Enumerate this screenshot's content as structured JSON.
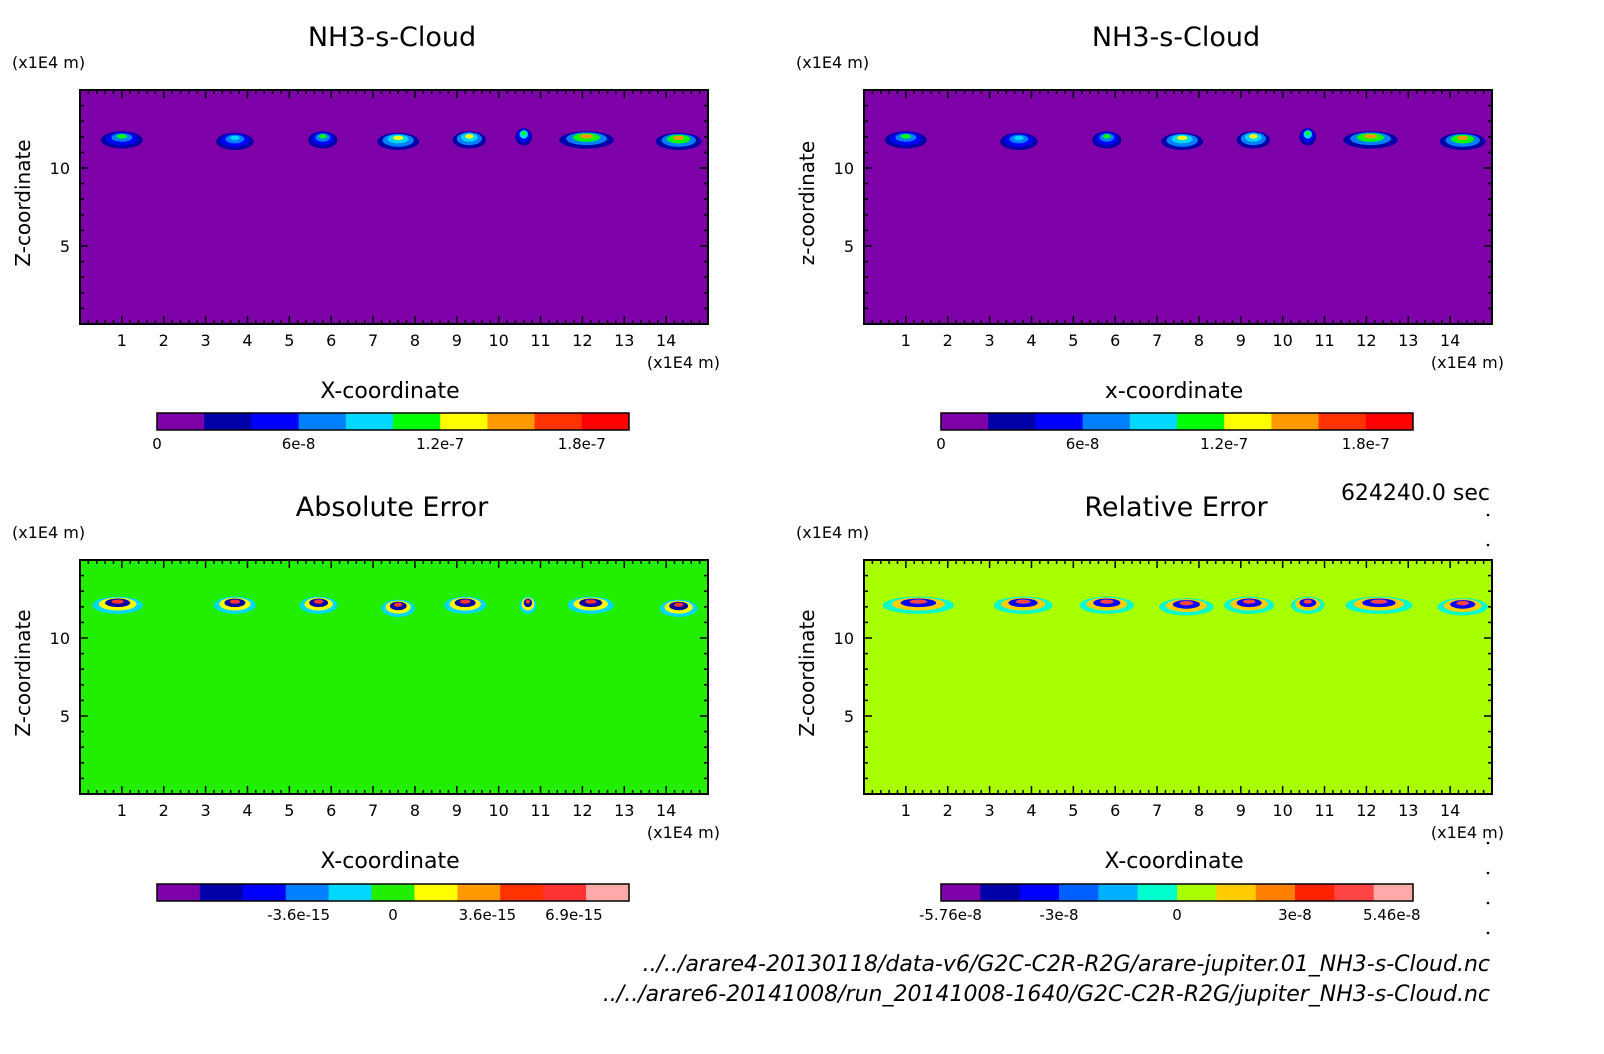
{
  "timestamp": "624240.0 sec",
  "footer": {
    "file1": "../../arare4-20130118/data-v6/G2C-C2R-R2G/arare-jupiter.01_NH3-s-Cloud.nc",
    "file2": "../../arare6-20141008/run_20141008-1640/G2C-C2R-R2G/jupiter_NH3-s-Cloud.nc"
  },
  "chart_data": [
    {
      "type": "heatmap",
      "title": "NH3-s-Cloud",
      "xlabel": "X-coordinate",
      "ylabel": "Z-coordinate",
      "x_unit": "(x1E4 m)",
      "y_unit": "(x1E4 m)",
      "xlim": [
        0,
        15
      ],
      "ylim": [
        0,
        15
      ],
      "xticks": [
        1,
        2,
        3,
        4,
        5,
        6,
        7,
        8,
        9,
        10,
        11,
        12,
        13,
        14
      ],
      "yticks": [
        5,
        10
      ],
      "background_color": "#7e00a8",
      "colorbar": {
        "colors": [
          "#7e00a8",
          "#0000a8",
          "#0000ff",
          "#0080ff",
          "#00d8ff",
          "#00ff00",
          "#ffff00",
          "#ff9900",
          "#ff3300",
          "#ff0000"
        ],
        "tick_labels": [
          "0",
          "6e-8",
          "1.2e-7",
          "1.8e-7"
        ],
        "tick_values": [
          0,
          6e-08,
          1.2e-07,
          1.8e-07
        ],
        "range": [
          0,
          2e-07
        ]
      },
      "features": [
        {
          "x": 1.0,
          "z": 11.8,
          "width": 1.0,
          "peak": 0.45
        },
        {
          "x": 3.7,
          "z": 11.7,
          "width": 0.9,
          "peak": 0.4
        },
        {
          "x": 5.8,
          "z": 11.8,
          "width": 0.7,
          "peak": 0.45
        },
        {
          "x": 7.6,
          "z": 11.7,
          "width": 1.0,
          "peak": 0.65
        },
        {
          "x": 9.3,
          "z": 11.8,
          "width": 0.8,
          "peak": 0.65
        },
        {
          "x": 10.6,
          "z": 12.0,
          "width": 0.4,
          "peak": 0.5
        },
        {
          "x": 12.1,
          "z": 11.8,
          "width": 1.3,
          "peak": 0.7
        },
        {
          "x": 14.3,
          "z": 11.7,
          "width": 1.1,
          "peak": 0.75
        }
      ]
    },
    {
      "type": "heatmap",
      "title": "NH3-s-Cloud",
      "xlabel": "x-coordinate",
      "ylabel": "z-coordinate",
      "x_unit": "(x1E4 m)",
      "y_unit": "(x1E4 m)",
      "xlim": [
        0,
        15
      ],
      "ylim": [
        0,
        15
      ],
      "xticks": [
        1,
        2,
        3,
        4,
        5,
        6,
        7,
        8,
        9,
        10,
        11,
        12,
        13,
        14
      ],
      "yticks": [
        5,
        10
      ],
      "background_color": "#7e00a8",
      "colorbar": {
        "colors": [
          "#7e00a8",
          "#0000a8",
          "#0000ff",
          "#0080ff",
          "#00d8ff",
          "#00ff00",
          "#ffff00",
          "#ff9900",
          "#ff3300",
          "#ff0000"
        ],
        "tick_labels": [
          "0",
          "6e-8",
          "1.2e-7",
          "1.8e-7"
        ],
        "tick_values": [
          0,
          6e-08,
          1.2e-07,
          1.8e-07
        ],
        "range": [
          0,
          2e-07
        ]
      },
      "features": [
        {
          "x": 1.0,
          "z": 11.8,
          "width": 1.0,
          "peak": 0.45
        },
        {
          "x": 3.7,
          "z": 11.7,
          "width": 0.9,
          "peak": 0.4
        },
        {
          "x": 5.8,
          "z": 11.8,
          "width": 0.7,
          "peak": 0.45
        },
        {
          "x": 7.6,
          "z": 11.7,
          "width": 1.0,
          "peak": 0.65
        },
        {
          "x": 9.3,
          "z": 11.8,
          "width": 0.8,
          "peak": 0.65
        },
        {
          "x": 10.6,
          "z": 12.0,
          "width": 0.4,
          "peak": 0.5
        },
        {
          "x": 12.1,
          "z": 11.8,
          "width": 1.3,
          "peak": 0.7
        },
        {
          "x": 14.3,
          "z": 11.7,
          "width": 1.1,
          "peak": 0.75
        }
      ]
    },
    {
      "type": "heatmap",
      "title": "Absolute Error",
      "xlabel": "X-coordinate",
      "ylabel": "Z-coordinate",
      "x_unit": "(x1E4 m)",
      "y_unit": "(x1E4 m)",
      "xlim": [
        0,
        15
      ],
      "ylim": [
        0,
        15
      ],
      "xticks": [
        1,
        2,
        3,
        4,
        5,
        6,
        7,
        8,
        9,
        10,
        11,
        12,
        13,
        14
      ],
      "yticks": [
        5,
        10
      ],
      "background_color": "#22ee00",
      "colorbar": {
        "colors": [
          "#7e00a8",
          "#0000a8",
          "#0000ff",
          "#0080ff",
          "#00d8ff",
          "#22ee00",
          "#ffff00",
          "#ff9900",
          "#ff3300",
          "#ff3333",
          "#ffaaaa"
        ],
        "tick_labels": [
          "-3.6e-15",
          "0",
          "3.6e-15",
          "6.9e-15"
        ],
        "tick_values": [
          -3.6e-15,
          0,
          3.6e-15,
          6.9e-15
        ],
        "range": [
          -9e-15,
          9e-15
        ]
      },
      "features": [
        {
          "x": 0.9,
          "z": 12.1,
          "width": 1.2,
          "peak": 0.3
        },
        {
          "x": 3.7,
          "z": 12.1,
          "width": 1.0,
          "peak": 0.3
        },
        {
          "x": 5.7,
          "z": 12.1,
          "width": 0.9,
          "peak": 0.3
        },
        {
          "x": 7.6,
          "z": 11.9,
          "width": 0.8,
          "peak": 0.5
        },
        {
          "x": 9.2,
          "z": 12.1,
          "width": 1.0,
          "peak": 0.3
        },
        {
          "x": 10.7,
          "z": 12.1,
          "width": 0.4,
          "peak": 0.3
        },
        {
          "x": 12.2,
          "z": 12.1,
          "width": 1.1,
          "peak": 0.4
        },
        {
          "x": 14.3,
          "z": 11.9,
          "width": 0.9,
          "peak": 0.5
        }
      ]
    },
    {
      "type": "heatmap",
      "title": "Relative Error",
      "xlabel": "X-coordinate",
      "ylabel": "Z-coordinate",
      "x_unit": "(x1E4 m)",
      "y_unit": "(x1E4 m)",
      "xlim": [
        0,
        15
      ],
      "ylim": [
        0,
        15
      ],
      "xticks": [
        1,
        2,
        3,
        4,
        5,
        6,
        7,
        8,
        9,
        10,
        11,
        12,
        13,
        14
      ],
      "yticks": [
        5,
        10
      ],
      "background_color": "#a8ff00",
      "colorbar": {
        "colors": [
          "#7e00a8",
          "#0000a8",
          "#0000ff",
          "#0060ff",
          "#00b0ff",
          "#00ffcc",
          "#a8ff00",
          "#ffcc00",
          "#ff8000",
          "#ff2200",
          "#ff4444",
          "#ffaaaa"
        ],
        "tick_labels": [
          "-5.76e-8",
          "-3e-8",
          "0",
          "3e-8",
          "5.46e-8"
        ],
        "tick_values": [
          -5.76e-08,
          -3e-08,
          0,
          3e-08,
          5.46e-08
        ],
        "range": [
          -6e-08,
          6e-08
        ]
      },
      "features": [
        {
          "x": 1.3,
          "z": 12.1,
          "width": 1.7,
          "peak": 0.8
        },
        {
          "x": 3.8,
          "z": 12.1,
          "width": 1.4,
          "peak": 0.8
        },
        {
          "x": 5.8,
          "z": 12.1,
          "width": 1.3,
          "peak": 0.8
        },
        {
          "x": 7.7,
          "z": 12.0,
          "width": 1.3,
          "peak": 0.85
        },
        {
          "x": 9.2,
          "z": 12.1,
          "width": 1.2,
          "peak": 0.8
        },
        {
          "x": 10.6,
          "z": 12.1,
          "width": 0.8,
          "peak": 0.7
        },
        {
          "x": 12.3,
          "z": 12.1,
          "width": 1.6,
          "peak": 0.85
        },
        {
          "x": 14.3,
          "z": 12.0,
          "width": 1.2,
          "peak": 0.85
        }
      ]
    }
  ]
}
